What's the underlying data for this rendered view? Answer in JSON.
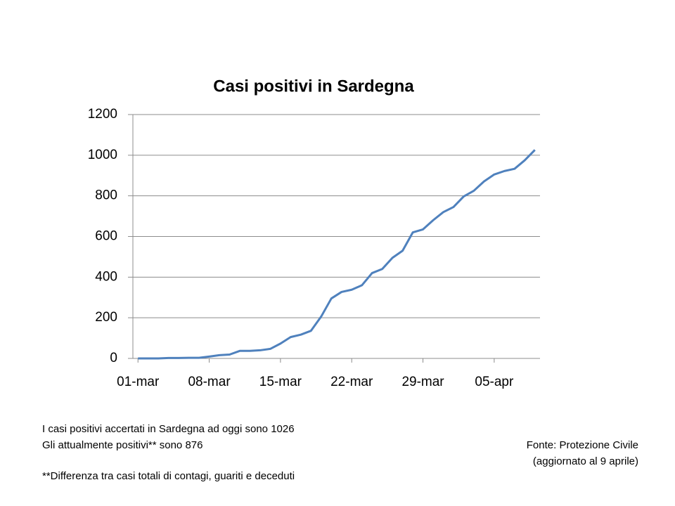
{
  "chart_data": {
    "type": "line",
    "title": "Casi positivi in Sardegna",
    "categories": [
      "01-mar",
      null,
      null,
      null,
      null,
      null,
      null,
      "08-mar",
      null,
      null,
      null,
      null,
      null,
      null,
      "15-mar",
      null,
      null,
      null,
      null,
      null,
      null,
      "22-mar",
      null,
      null,
      null,
      null,
      null,
      null,
      "29-mar",
      null,
      null,
      null,
      null,
      null,
      null,
      "05-apr",
      null,
      null,
      null,
      null
    ],
    "values": [
      0,
      0,
      0,
      2,
      2,
      3,
      3,
      9,
      16,
      19,
      37,
      37,
      40,
      47,
      73,
      105,
      117,
      136,
      206,
      295,
      327,
      338,
      360,
      420,
      440,
      495,
      530,
      620,
      635,
      680,
      720,
      745,
      797,
      825,
      871,
      905,
      922,
      933,
      975,
      1026
    ],
    "color": "#4f81bd",
    "ylim": [
      0,
      1200
    ],
    "yticks": [
      0,
      200,
      400,
      600,
      800,
      1000,
      1200
    ],
    "grid": true,
    "annotations": [
      "I casi positivi accertati in Sardegna ad oggi sono  1026",
      "Gli attualmente positivi** sono 876",
      "**Differenza tra casi totali di contagi, guariti e deceduti"
    ],
    "source": [
      "Fonte: Protezione Civile",
      "(aggiornato al 9 aprile)"
    ]
  }
}
